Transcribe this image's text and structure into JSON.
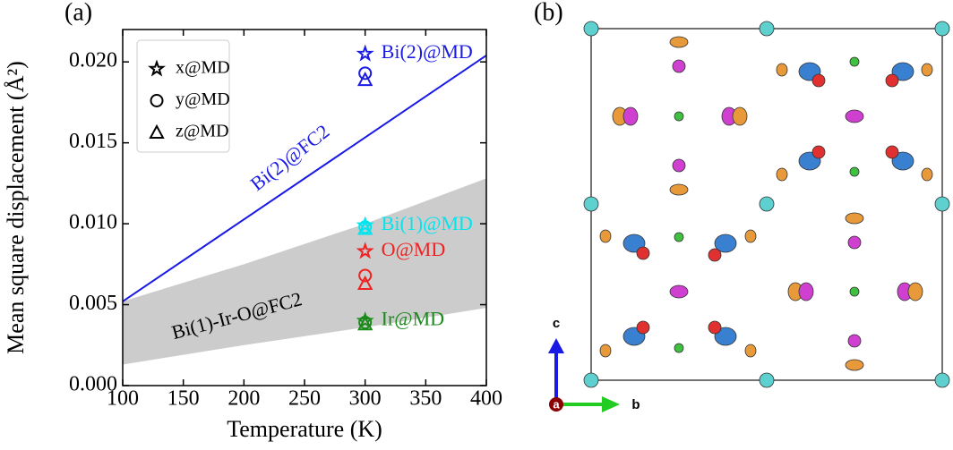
{
  "panel_labels": [
    "(a)",
    "(b)"
  ],
  "chart_data": {
    "type": "line",
    "xlabel": "Temperature (K)",
    "ylabel": "Mean square displacement (Å²)",
    "xlim": [
      100,
      400
    ],
    "xticks": [
      100,
      150,
      200,
      250,
      300,
      350,
      400
    ],
    "ylim": [
      0,
      0.022
    ],
    "yticks": [
      {
        "value": 0,
        "label": "0.000"
      },
      0.005,
      {
        "value": 0.01,
        "label": "0.010"
      },
      0.015,
      {
        "value": 0.02,
        "label": "0.020"
      }
    ],
    "series": [
      {
        "name": "Bi(2)@FC2",
        "color": "#1a1ae6",
        "x": [
          100,
          400
        ],
        "values": [
          0.0052,
          0.0204
        ]
      }
    ],
    "band": {
      "name": "Bi(1)-Ir-O@FC2",
      "color": "#cccccc",
      "x": [
        100,
        200,
        300,
        400
      ],
      "lower": [
        0.0013,
        0.0025,
        0.0036,
        0.0048
      ],
      "upper": [
        0.0052,
        0.0075,
        0.01,
        0.0128
      ]
    },
    "legend": [
      "x@MD",
      "y@MD",
      "z@MD"
    ],
    "groups": [
      {
        "name": "Bi(2)@MD",
        "color": "#1a1ae6",
        "x": 300,
        "values": [
          0.0205,
          0.0193,
          0.0189
        ]
      },
      {
        "name": "Bi(1)@MD",
        "color": "#00e5ee",
        "x": 300,
        "values": [
          0.0099,
          0.0098,
          0.0097
        ]
      },
      {
        "name": "O@MD",
        "color": "#ee2222",
        "x": 300,
        "values": [
          0.0083,
          0.0068,
          0.0063
        ]
      },
      {
        "name": "Ir@MD",
        "color": "#1a8a1a",
        "x": 300,
        "values": [
          0.004,
          0.0039,
          0.0038
        ]
      }
    ]
  },
  "structure": {
    "axes": [
      "c",
      "a",
      "b"
    ]
  }
}
